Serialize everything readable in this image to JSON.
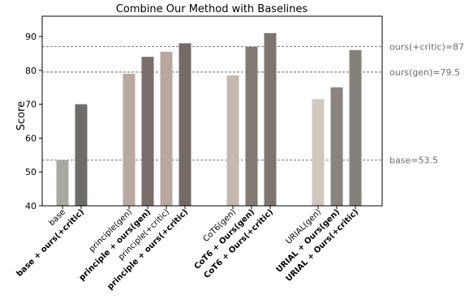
{
  "chart_data": {
    "type": "bar",
    "title": "Combine Our Method with Baselines",
    "xlabel": "",
    "ylabel": "Score",
    "ylim": [
      40,
      96
    ],
    "yticks": [
      40,
      50,
      60,
      70,
      80,
      90
    ],
    "grid": false,
    "legend": "none",
    "categories": [
      {
        "label": "base",
        "value": 53.5,
        "bold": false,
        "color": "#a8a8a0",
        "group": 0
      },
      {
        "label": "base + ours(+critic)",
        "value": 70,
        "bold": true,
        "color": "#6e6d6a",
        "group": 0
      },
      {
        "label": "principle(gen)",
        "value": 79,
        "bold": false,
        "color": "#b8a8a0",
        "group": 1
      },
      {
        "label": "principle + ours(gen)",
        "value": 84,
        "bold": true,
        "color": "#7a6e6a",
        "group": 1
      },
      {
        "label": "principle(+critic)",
        "value": 85.5,
        "bold": false,
        "color": "#b8a8a0",
        "group": 1
      },
      {
        "label": "principle + ours(+critic)",
        "value": 88,
        "bold": true,
        "color": "#756a66",
        "group": 1
      },
      {
        "label": "CoT6(gen)",
        "value": 78.5,
        "bold": false,
        "color": "#c4b8ae",
        "group": 2
      },
      {
        "label": "CoT6 + Ours(gen)",
        "value": 87,
        "bold": true,
        "color": "#827b74",
        "group": 2
      },
      {
        "label": "CoT6 + Ours(+critic)",
        "value": 91,
        "bold": true,
        "color": "#7d7670",
        "group": 2
      },
      {
        "label": "URIAL(gen)",
        "value": 71.5,
        "bold": false,
        "color": "#d0c8bc",
        "group": 3
      },
      {
        "label": "URIAL + Ours(gen)",
        "value": 75,
        "bold": true,
        "color": "#8a8480",
        "group": 3
      },
      {
        "label": "URIAL + Ours(+critic)",
        "value": 86,
        "bold": true,
        "color": "#86807b",
        "group": 3
      }
    ],
    "reference_lines": [
      {
        "label": "ours(+critic)=87",
        "value": 87
      },
      {
        "label": "ours(gen)=79.5",
        "value": 79.5
      },
      {
        "label": "base=53.5",
        "value": 53.5
      }
    ]
  }
}
